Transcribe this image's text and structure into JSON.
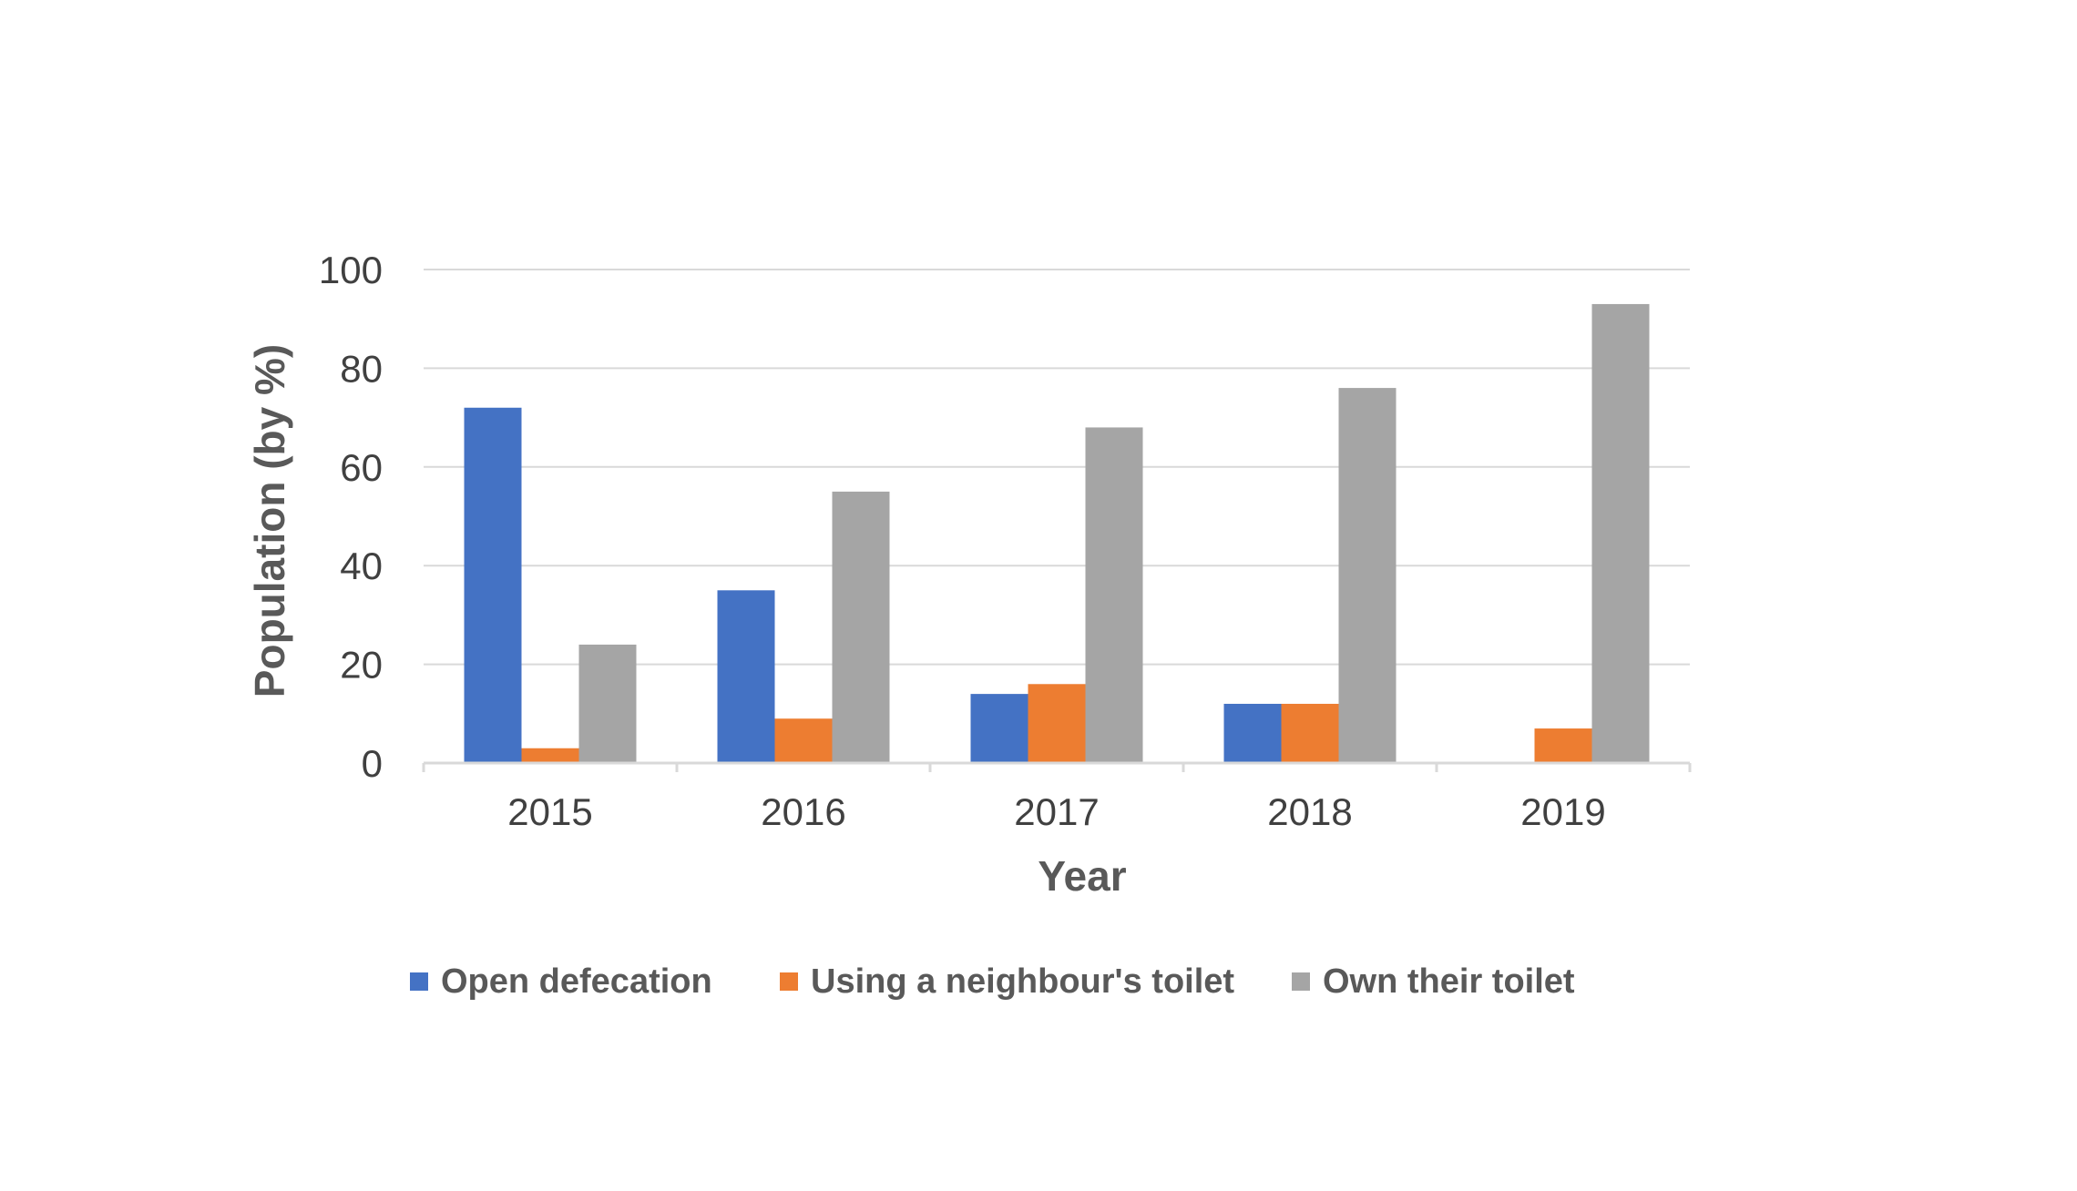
{
  "chart_data": {
    "type": "bar",
    "categories": [
      "2015",
      "2016",
      "2017",
      "2018",
      "2019"
    ],
    "series": [
      {
        "name": "Open defecation",
        "color": "#4472C4",
        "values": [
          72,
          35,
          14,
          12,
          0
        ]
      },
      {
        "name": "Using a neighbour's toilet",
        "color": "#ED7D31",
        "values": [
          3,
          9,
          16,
          12,
          7
        ]
      },
      {
        "name": "Own their toilet",
        "color": "#A5A5A5",
        "values": [
          24,
          55,
          68,
          76,
          93
        ]
      }
    ],
    "title": "",
    "xlabel": "Year",
    "ylabel": "Population (by %)",
    "ylim": [
      0,
      100
    ],
    "yticks": [
      "0",
      "20",
      "40",
      "60",
      "80",
      "100"
    ],
    "grid": true,
    "legend_position": "bottom"
  }
}
